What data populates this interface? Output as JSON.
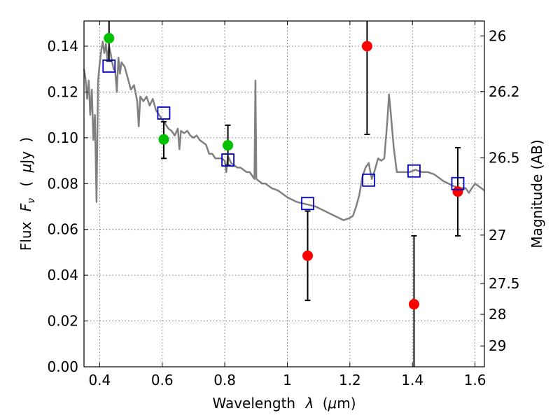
{
  "chart_data": {
    "type": "scatter",
    "xlabel_text": "Wavelength",
    "xlabel_symbol": "λ",
    "xlabel_unit_open": "(",
    "xlabel_unit_mu": "μ",
    "xlabel_unit_rest": "m)",
    "ylabel_text": "Flux",
    "ylabel_symbol_F": "F",
    "ylabel_symbol_nu": "ν",
    "ylabel_unit_open": "(",
    "ylabel_unit_mu": "μ",
    "ylabel_unit_rest": "Jy",
    "ylabel_unit_close": ")",
    "y2label": "Magnitude (AB)",
    "xlim": [
      0.35,
      1.63
    ],
    "ylim": [
      0.0,
      0.151
    ],
    "x_ticks": [
      0.4,
      0.6,
      0.8,
      1.0,
      1.2,
      1.4,
      1.6
    ],
    "x_tick_labels": [
      "0.4",
      "0.6",
      "0.8",
      "1",
      "1.2",
      "1.4",
      "1.6"
    ],
    "y_ticks": [
      0.0,
      0.02,
      0.04,
      0.06,
      0.08,
      0.1,
      0.12,
      0.14
    ],
    "y_tick_labels": [
      "0.00",
      "0.02",
      "0.04",
      "0.06",
      "0.08",
      "0.10",
      "0.12",
      "0.14"
    ],
    "mag_ticks": [
      {
        "label": "26",
        "flux": 0.1445
      },
      {
        "label": "26.2",
        "flux": 0.1202
      },
      {
        "label": "26.5",
        "flux": 0.0912
      },
      {
        "label": "27",
        "flux": 0.0575
      },
      {
        "label": "27.5",
        "flux": 0.0363
      },
      {
        "label": "28",
        "flux": 0.0229
      },
      {
        "label": "29",
        "flux": 0.0091
      }
    ],
    "grid": true,
    "model_color": "#808080",
    "model_sed": [
      [
        0.35,
        0.13
      ],
      [
        0.355,
        0.126
      ],
      [
        0.36,
        0.117
      ],
      [
        0.365,
        0.125
      ],
      [
        0.37,
        0.11
      ],
      [
        0.375,
        0.121
      ],
      [
        0.38,
        0.099
      ],
      [
        0.385,
        0.11
      ],
      [
        0.39,
        0.072
      ],
      [
        0.395,
        0.125
      ],
      [
        0.4,
        0.132
      ],
      [
        0.405,
        0.138
      ],
      [
        0.41,
        0.142
      ],
      [
        0.415,
        0.137
      ],
      [
        0.42,
        0.141
      ],
      [
        0.425,
        0.134
      ],
      [
        0.43,
        0.14
      ],
      [
        0.435,
        0.137
      ],
      [
        0.44,
        0.133
      ],
      [
        0.445,
        0.13
      ],
      [
        0.45,
        0.129
      ],
      [
        0.455,
        0.12
      ],
      [
        0.46,
        0.135
      ],
      [
        0.465,
        0.128
      ],
      [
        0.47,
        0.133
      ],
      [
        0.48,
        0.131
      ],
      [
        0.49,
        0.126
      ],
      [
        0.5,
        0.121
      ],
      [
        0.51,
        0.123
      ],
      [
        0.52,
        0.116
      ],
      [
        0.525,
        0.105
      ],
      [
        0.53,
        0.118
      ],
      [
        0.54,
        0.116
      ],
      [
        0.55,
        0.118
      ],
      [
        0.56,
        0.114
      ],
      [
        0.57,
        0.117
      ],
      [
        0.58,
        0.112
      ],
      [
        0.59,
        0.11
      ],
      [
        0.6,
        0.108
      ],
      [
        0.61,
        0.106
      ],
      [
        0.62,
        0.104
      ],
      [
        0.63,
        0.103
      ],
      [
        0.64,
        0.101
      ],
      [
        0.65,
        0.104
      ],
      [
        0.655,
        0.095
      ],
      [
        0.66,
        0.103
      ],
      [
        0.67,
        0.102
      ],
      [
        0.68,
        0.103
      ],
      [
        0.69,
        0.101
      ],
      [
        0.7,
        0.1
      ],
      [
        0.71,
        0.101
      ],
      [
        0.72,
        0.099
      ],
      [
        0.73,
        0.098
      ],
      [
        0.74,
        0.097
      ],
      [
        0.75,
        0.093
      ],
      [
        0.76,
        0.093
      ],
      [
        0.77,
        0.091
      ],
      [
        0.78,
        0.091
      ],
      [
        0.79,
        0.091
      ],
      [
        0.8,
        0.09
      ],
      [
        0.805,
        0.085
      ],
      [
        0.81,
        0.092
      ],
      [
        0.82,
        0.089
      ],
      [
        0.83,
        0.088
      ],
      [
        0.84,
        0.087
      ],
      [
        0.85,
        0.087
      ],
      [
        0.86,
        0.086
      ],
      [
        0.87,
        0.085
      ],
      [
        0.88,
        0.085
      ],
      [
        0.89,
        0.083
      ],
      [
        0.895,
        0.082
      ],
      [
        0.898,
        0.125
      ],
      [
        0.901,
        0.082
      ],
      [
        0.91,
        0.081
      ],
      [
        0.92,
        0.08
      ],
      [
        0.93,
        0.08
      ],
      [
        0.95,
        0.078
      ],
      [
        0.97,
        0.077
      ],
      [
        1.0,
        0.074
      ],
      [
        1.03,
        0.072
      ],
      [
        1.06,
        0.071
      ],
      [
        1.09,
        0.07
      ],
      [
        1.12,
        0.068
      ],
      [
        1.15,
        0.066
      ],
      [
        1.18,
        0.064
      ],
      [
        1.2,
        0.065
      ],
      [
        1.21,
        0.066
      ],
      [
        1.22,
        0.07
      ],
      [
        1.23,
        0.075
      ],
      [
        1.24,
        0.083
      ],
      [
        1.25,
        0.087
      ],
      [
        1.26,
        0.089
      ],
      [
        1.27,
        0.082
      ],
      [
        1.28,
        0.086
      ],
      [
        1.29,
        0.091
      ],
      [
        1.3,
        0.09
      ],
      [
        1.31,
        0.091
      ],
      [
        1.32,
        0.108
      ],
      [
        1.325,
        0.119
      ],
      [
        1.33,
        0.112
      ],
      [
        1.34,
        0.096
      ],
      [
        1.35,
        0.085
      ],
      [
        1.37,
        0.085
      ],
      [
        1.39,
        0.085
      ],
      [
        1.41,
        0.086
      ],
      [
        1.43,
        0.085
      ],
      [
        1.45,
        0.085
      ],
      [
        1.47,
        0.084
      ],
      [
        1.5,
        0.081
      ],
      [
        1.53,
        0.079
      ],
      [
        1.55,
        0.078
      ],
      [
        1.57,
        0.078
      ],
      [
        1.58,
        0.076
      ],
      [
        1.59,
        0.078
      ],
      [
        1.6,
        0.08
      ],
      [
        1.61,
        0.079
      ],
      [
        1.62,
        0.078
      ],
      [
        1.63,
        0.077
      ]
    ],
    "observed": [
      {
        "x": 0.43,
        "y": 0.1435,
        "err_lo": 0.1335,
        "err_hi": 0.152,
        "color": "#00c000"
      },
      {
        "x": 0.605,
        "y": 0.0993,
        "err_lo": 0.091,
        "err_hi": 0.107,
        "color": "#00c000"
      },
      {
        "x": 0.81,
        "y": 0.0967,
        "err_lo": 0.088,
        "err_hi": 0.1055,
        "color": "#00c000"
      },
      {
        "x": 1.065,
        "y": 0.0485,
        "err_lo": 0.029,
        "err_hi": 0.068,
        "color": "#ff0000"
      },
      {
        "x": 1.255,
        "y": 0.14,
        "err_lo": 0.1015,
        "err_hi": 0.152,
        "color": "#ff0000"
      },
      {
        "x": 1.405,
        "y": 0.0273,
        "err_lo": 0.0,
        "err_hi": 0.0572,
        "color": "#ff0000"
      },
      {
        "x": 1.545,
        "y": 0.0765,
        "err_lo": 0.0572,
        "err_hi": 0.0957,
        "color": "#ff0000"
      }
    ],
    "model_photometry": [
      {
        "x": 0.43,
        "y": 0.1313
      },
      {
        "x": 0.605,
        "y": 0.1108
      },
      {
        "x": 0.81,
        "y": 0.0903
      },
      {
        "x": 1.065,
        "y": 0.0713
      },
      {
        "x": 1.26,
        "y": 0.0815
      },
      {
        "x": 1.405,
        "y": 0.0855
      },
      {
        "x": 1.545,
        "y": 0.08
      }
    ],
    "model_photometry_color": "#0000cc"
  }
}
